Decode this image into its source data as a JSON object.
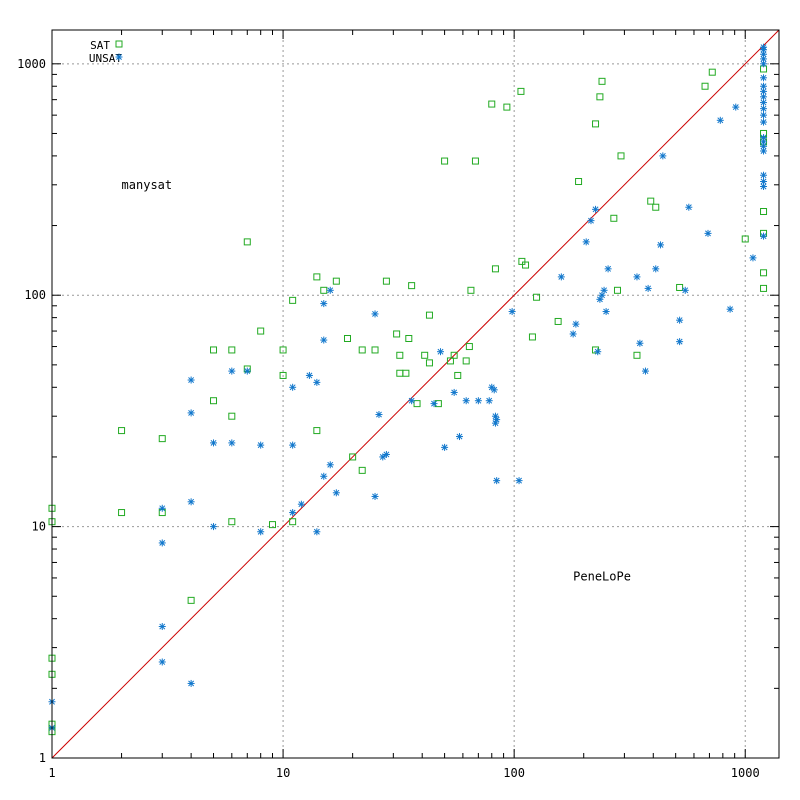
{
  "chart_data": {
    "type": "scatter",
    "title": "",
    "xlabel": "",
    "ylabel": "",
    "xscale": "log",
    "yscale": "log",
    "xlim": [
      1,
      1400
    ],
    "ylim": [
      1,
      1400
    ],
    "grid": true,
    "legend_position": "top-left",
    "x_ticks": [
      {
        "value": 1,
        "label": "1"
      },
      {
        "value": 10,
        "label": "10"
      },
      {
        "value": 100,
        "label": "100"
      },
      {
        "value": 1000,
        "label": "1000"
      }
    ],
    "y_ticks": [
      {
        "value": 1,
        "label": "1"
      },
      {
        "value": 10,
        "label": "10"
      },
      {
        "value": 100,
        "label": "100"
      },
      {
        "value": 1000,
        "label": "1000"
      }
    ],
    "reference_line": {
      "from": [
        1,
        1
      ],
      "to": [
        1400,
        1400
      ],
      "color": "#cc0000"
    },
    "annotations": [
      {
        "text": "manysat",
        "x": 2,
        "y": 300
      },
      {
        "text": "PeneLoPe",
        "x": 180,
        "y": 10
      }
    ],
    "series": [
      {
        "name": "SAT",
        "marker": "square",
        "color": "#22aa22",
        "points": [
          [
            1,
            12
          ],
          [
            1,
            10.5
          ],
          [
            1,
            2.7
          ],
          [
            1,
            2.3
          ],
          [
            1,
            1.4
          ],
          [
            1,
            1.3
          ],
          [
            2,
            26
          ],
          [
            2,
            11.5
          ],
          [
            3,
            24
          ],
          [
            3,
            11.5
          ],
          [
            4,
            4.8
          ],
          [
            5,
            58
          ],
          [
            5,
            35
          ],
          [
            6,
            58
          ],
          [
            6,
            30
          ],
          [
            6,
            10.5
          ],
          [
            7,
            170
          ],
          [
            7,
            48
          ],
          [
            8,
            70
          ],
          [
            9,
            10.2
          ],
          [
            10,
            58
          ],
          [
            10,
            45
          ],
          [
            11,
            95
          ],
          [
            11,
            10.5
          ],
          [
            14,
            120
          ],
          [
            14,
            26
          ],
          [
            15,
            105
          ],
          [
            17,
            115
          ],
          [
            19,
            65
          ],
          [
            20,
            20
          ],
          [
            22,
            58
          ],
          [
            22,
            17.5
          ],
          [
            25,
            58
          ],
          [
            28,
            115
          ],
          [
            31,
            68
          ],
          [
            32,
            55
          ],
          [
            32,
            46
          ],
          [
            34,
            46
          ],
          [
            35,
            65
          ],
          [
            36,
            110
          ],
          [
            38,
            34
          ],
          [
            41,
            55
          ],
          [
            43,
            82
          ],
          [
            43,
            51
          ],
          [
            47,
            34
          ],
          [
            50,
            380
          ],
          [
            53,
            52
          ],
          [
            55,
            55
          ],
          [
            57,
            45
          ],
          [
            62,
            52
          ],
          [
            64,
            60
          ],
          [
            65,
            105
          ],
          [
            68,
            380
          ],
          [
            80,
            670
          ],
          [
            83,
            130
          ],
          [
            93,
            650
          ],
          [
            107,
            760
          ],
          [
            108,
            140
          ],
          [
            112,
            135
          ],
          [
            120,
            66
          ],
          [
            125,
            98
          ],
          [
            155,
            77
          ],
          [
            190,
            310
          ],
          [
            225,
            550
          ],
          [
            225,
            58
          ],
          [
            235,
            720
          ],
          [
            240,
            840
          ],
          [
            270,
            215
          ],
          [
            280,
            105
          ],
          [
            290,
            400
          ],
          [
            340,
            55
          ],
          [
            390,
            255
          ],
          [
            410,
            240
          ],
          [
            520,
            108
          ],
          [
            670,
            800
          ],
          [
            720,
            920
          ],
          [
            1000,
            175
          ],
          [
            1200,
            950
          ],
          [
            1200,
            500
          ],
          [
            1200,
            460
          ],
          [
            1200,
            230
          ],
          [
            1200,
            185
          ],
          [
            1200,
            125
          ],
          [
            1200,
            107
          ]
        ]
      },
      {
        "name": "UNSAT",
        "marker": "star",
        "color": "#1177cc",
        "points": [
          [
            1,
            1.75
          ],
          [
            1,
            1.35
          ],
          [
            3,
            12
          ],
          [
            3,
            8.5
          ],
          [
            3,
            3.7
          ],
          [
            3,
            2.6
          ],
          [
            4,
            43
          ],
          [
            4,
            31
          ],
          [
            4,
            12.8
          ],
          [
            4,
            2.1
          ],
          [
            5,
            23
          ],
          [
            5,
            10
          ],
          [
            6,
            47
          ],
          [
            6,
            23
          ],
          [
            7,
            47
          ],
          [
            8,
            22.5
          ],
          [
            8,
            9.5
          ],
          [
            11,
            40
          ],
          [
            11,
            22.5
          ],
          [
            11,
            11.5
          ],
          [
            12,
            12.5
          ],
          [
            13,
            45
          ],
          [
            14,
            42
          ],
          [
            14,
            9.5
          ],
          [
            15,
            92
          ],
          [
            15,
            64
          ],
          [
            15,
            16.5
          ],
          [
            16,
            105
          ],
          [
            16,
            18.5
          ],
          [
            17,
            14
          ],
          [
            25,
            83
          ],
          [
            26,
            30.5
          ],
          [
            27,
            20
          ],
          [
            28,
            20.5
          ],
          [
            25,
            13.5
          ],
          [
            36,
            35
          ],
          [
            48,
            57
          ],
          [
            50,
            22
          ],
          [
            45,
            34
          ],
          [
            55,
            38
          ],
          [
            58,
            24.5
          ],
          [
            62,
            35
          ],
          [
            70,
            35
          ],
          [
            78,
            35
          ],
          [
            80,
            40
          ],
          [
            82,
            39
          ],
          [
            83,
            30
          ],
          [
            83,
            28
          ],
          [
            84,
            29
          ],
          [
            84,
            15.8
          ],
          [
            98,
            85
          ],
          [
            105,
            15.8
          ],
          [
            160,
            120
          ],
          [
            180,
            68
          ],
          [
            185,
            75
          ],
          [
            205,
            170
          ],
          [
            215,
            210
          ],
          [
            225,
            235
          ],
          [
            230,
            57
          ],
          [
            235,
            96
          ],
          [
            240,
            100
          ],
          [
            245,
            105
          ],
          [
            250,
            85
          ],
          [
            255,
            130
          ],
          [
            340,
            120
          ],
          [
            350,
            62
          ],
          [
            370,
            47
          ],
          [
            380,
            107
          ],
          [
            410,
            130
          ],
          [
            430,
            165
          ],
          [
            440,
            400
          ],
          [
            520,
            78
          ],
          [
            520,
            63
          ],
          [
            550,
            105
          ],
          [
            570,
            240
          ],
          [
            690,
            185
          ],
          [
            780,
            570
          ],
          [
            860,
            87
          ],
          [
            910,
            650
          ],
          [
            1080,
            145
          ],
          [
            1200,
            1180
          ],
          [
            1200,
            1150
          ],
          [
            1200,
            1100
          ],
          [
            1200,
            1050
          ],
          [
            1200,
            1000
          ],
          [
            1200,
            870
          ],
          [
            1200,
            800
          ],
          [
            1200,
            760
          ],
          [
            1200,
            720
          ],
          [
            1200,
            680
          ],
          [
            1200,
            640
          ],
          [
            1200,
            600
          ],
          [
            1200,
            560
          ],
          [
            1200,
            480
          ],
          [
            1200,
            460
          ],
          [
            1200,
            440
          ],
          [
            1200,
            420
          ],
          [
            1200,
            330
          ],
          [
            1200,
            310
          ],
          [
            1200,
            295
          ],
          [
            1200,
            180
          ]
        ]
      }
    ]
  }
}
